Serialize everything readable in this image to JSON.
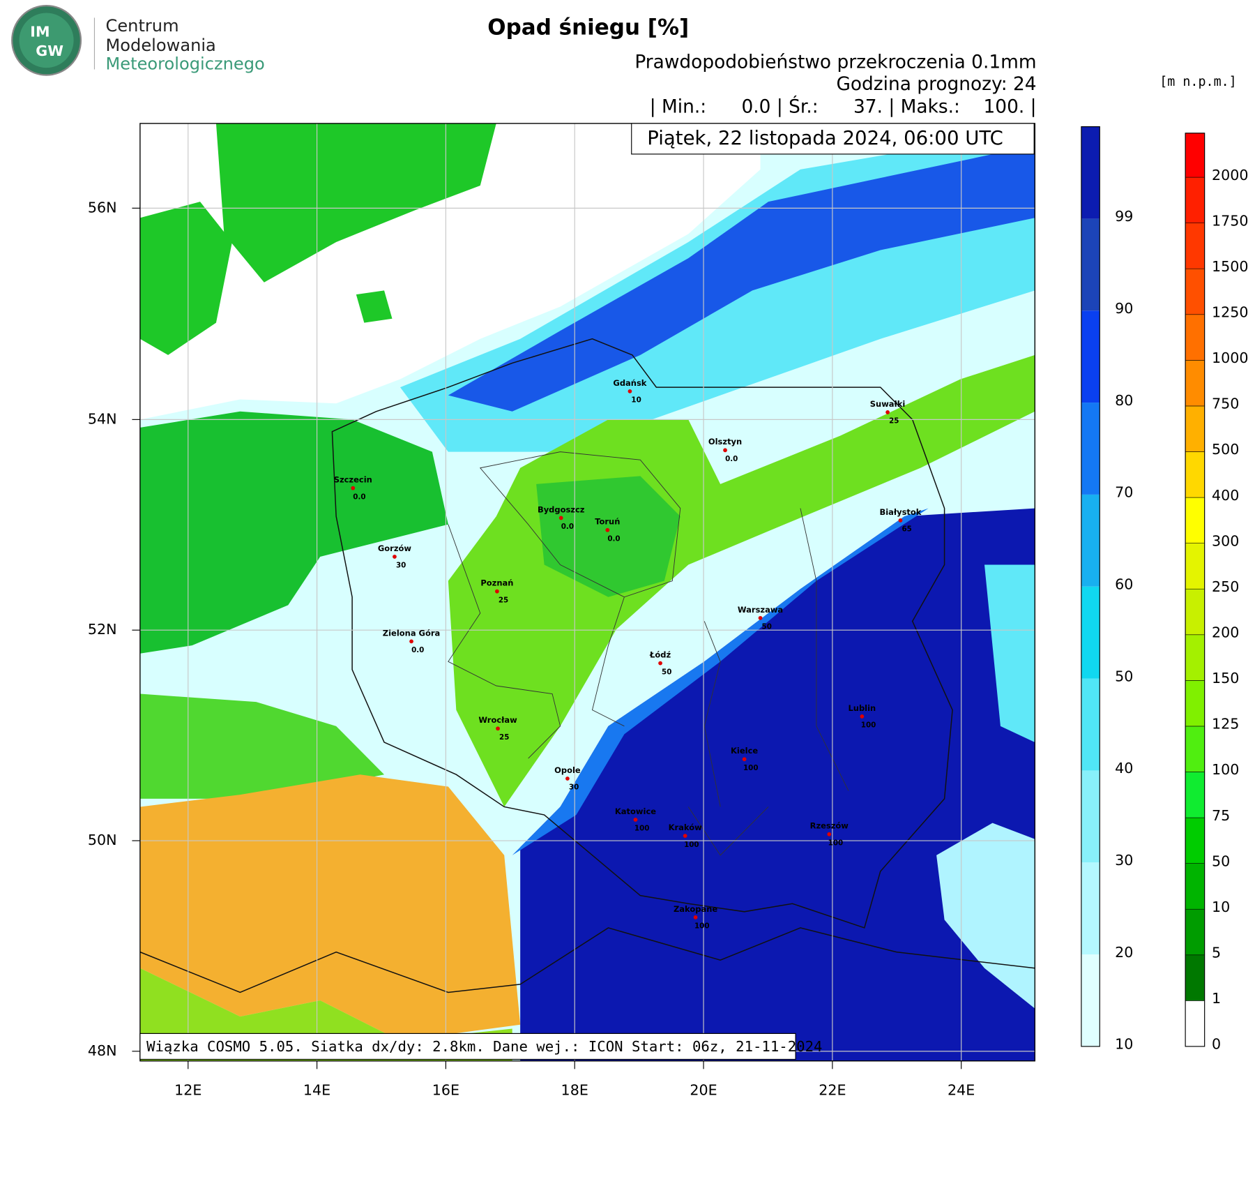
{
  "logo": {
    "badge": [
      "IM",
      "GW"
    ],
    "lines": [
      "Centrum",
      "Modelowania",
      "Meteorologicznego"
    ]
  },
  "title": "Opad śniegu [%]",
  "subtitle": "Prawdopodobieństwo przekroczenia 0.1mm",
  "forecast_hour": "Godzina prognozy: 24",
  "stats": "| Min.:      0.0 | Śr.:      37. | Maks.:    100. |",
  "date": "Piątek, 22 listopada 2024, 06:00 UTC",
  "footer": "Wiązka COSMO 5.05. Siatka dx/dy: 2.8km. Dane wej.: ICON Start: 06z, 21-11-2024",
  "lat_labels": [
    "56N",
    "54N",
    "52N",
    "50N",
    "48N"
  ],
  "lon_labels": [
    "12E",
    "14E",
    "16E",
    "18E",
    "20E",
    "22E",
    "24E"
  ],
  "cities": [
    {
      "name": "Gdańsk",
      "value": "10"
    },
    {
      "name": "Suwałki",
      "value": "25"
    },
    {
      "name": "Olsztyn",
      "value": "0.0"
    },
    {
      "name": "Szczecin",
      "value": "0.0"
    },
    {
      "name": "Bydgoszcz",
      "value": "0.0"
    },
    {
      "name": "Toruń",
      "value": "0.0"
    },
    {
      "name": "Białystok",
      "value": "65"
    },
    {
      "name": "Gorzów",
      "value": "30"
    },
    {
      "name": "Poznań",
      "value": "25"
    },
    {
      "name": "Warszawa",
      "value": "50"
    },
    {
      "name": "Zielona Góra",
      "value": "0.0"
    },
    {
      "name": "Łódź",
      "value": "50"
    },
    {
      "name": "Lublin",
      "value": "100"
    },
    {
      "name": "Wrocław",
      "value": "25"
    },
    {
      "name": "Kielce",
      "value": "100"
    },
    {
      "name": "Opole",
      "value": "30"
    },
    {
      "name": "Katowice",
      "value": "100"
    },
    {
      "name": "Kraków",
      "value": "100"
    },
    {
      "name": "Rzeszów",
      "value": "100"
    },
    {
      "name": "Zakopane",
      "value": "100"
    }
  ],
  "colorbar": {
    "ticks": [
      "10",
      "20",
      "30",
      "40",
      "50",
      "60",
      "70",
      "80",
      "90",
      "99"
    ],
    "colors": [
      "#e0ffff",
      "#b4f8ff",
      "#88f0fa",
      "#50e6f6",
      "#10d8f0",
      "#18b0f0",
      "#1478f4",
      "#0a40f0",
      "#1c44b8",
      "#0c1cb0"
    ]
  },
  "elevation": {
    "unit": "[m n.p.m.]",
    "ticks": [
      "0",
      "1",
      "5",
      "10",
      "50",
      "75",
      "100",
      "125",
      "150",
      "200",
      "250",
      "300",
      "400",
      "500",
      "750",
      "1000",
      "1250",
      "1500",
      "1750",
      "2000"
    ],
    "colors": [
      "#ffffff",
      "#007800",
      "#009c00",
      "#00b400",
      "#00cc00",
      "#10ec30",
      "#50ee10",
      "#80f000",
      "#a4f000",
      "#c8f000",
      "#e4f400",
      "#ffff00",
      "#ffd800",
      "#ffb000",
      "#ff8c00",
      "#ff7000",
      "#ff5000",
      "#ff3800",
      "#ff2000",
      "#ff0000"
    ]
  }
}
